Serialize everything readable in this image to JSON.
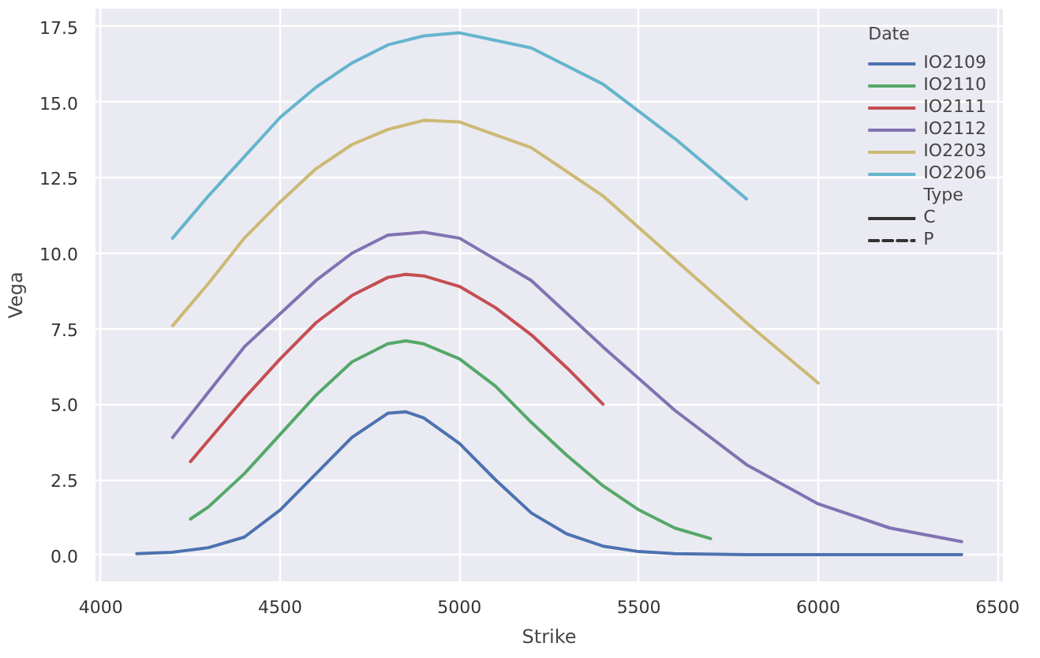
{
  "chart_data": {
    "type": "line",
    "xlabel": "Strike",
    "ylabel": "Vega",
    "legend_title": "Date",
    "legend": "top right",
    "grid": true,
    "line_style": "solid",
    "marker": "none",
    "xlim": [
      3985,
      6515
    ],
    "xticks": [
      4000,
      4500,
      5000,
      5500,
      6000,
      6500
    ],
    "ylim": [
      -0.87,
      18.1
    ],
    "yticks": [
      {
        "value": 0,
        "label": "0.0"
      },
      {
        "value": 2.5,
        "label": "2.5"
      },
      {
        "value": 5,
        "label": "5.0"
      },
      {
        "value": 7.5,
        "label": "7.5"
      },
      {
        "value": 10,
        "label": "10.0"
      },
      {
        "value": 12.5,
        "label": "12.5"
      },
      {
        "value": 15,
        "label": "15.0"
      },
      {
        "value": 17.5,
        "label": "17.5"
      }
    ],
    "series": [
      {
        "name": "IO2109",
        "color": "#4c72b0",
        "x": [
          4100,
          4200,
          4300,
          4400,
          4500,
          4600,
          4700,
          4800,
          4850,
          4900,
          5000,
          5100,
          5200,
          5300,
          5400,
          5500,
          5600,
          5800,
          6000,
          6200,
          6400
        ],
        "values": [
          0.05,
          0.1,
          0.25,
          0.6,
          1.5,
          2.7,
          3.9,
          4.7,
          4.75,
          4.55,
          3.7,
          2.5,
          1.4,
          0.7,
          0.3,
          0.12,
          0.05,
          0.02,
          0.02,
          0.02,
          0.02
        ]
      },
      {
        "name": "IO2110",
        "color": "#55a868",
        "x": [
          4250,
          4300,
          4400,
          4500,
          4600,
          4700,
          4800,
          4850,
          4900,
          5000,
          5100,
          5200,
          5300,
          5400,
          5500,
          5600,
          5700
        ],
        "values": [
          1.2,
          1.6,
          2.7,
          4.0,
          5.3,
          6.4,
          7.0,
          7.1,
          7.0,
          6.5,
          5.6,
          4.4,
          3.3,
          2.3,
          1.5,
          0.9,
          0.55
        ]
      },
      {
        "name": "IO2111",
        "color": "#c44e52",
        "x": [
          4250,
          4300,
          4400,
          4500,
          4600,
          4700,
          4800,
          4850,
          4900,
          5000,
          5100,
          5200,
          5300,
          5400
        ],
        "values": [
          3.1,
          3.8,
          5.2,
          6.5,
          7.7,
          8.6,
          9.2,
          9.3,
          9.25,
          8.9,
          8.2,
          7.3,
          6.2,
          5.0
        ]
      },
      {
        "name": "IO2112",
        "color": "#8172b2",
        "x": [
          4200,
          4300,
          4400,
          4500,
          4600,
          4700,
          4800,
          4900,
          5000,
          5200,
          5400,
          5600,
          5800,
          6000,
          6200,
          6400
        ],
        "values": [
          3.9,
          5.4,
          6.9,
          8.0,
          9.1,
          10.0,
          10.6,
          10.7,
          10.5,
          9.1,
          6.9,
          4.8,
          3.0,
          1.7,
          0.9,
          0.45
        ]
      },
      {
        "name": "IO2203",
        "color": "#ccb974",
        "x": [
          4200,
          4300,
          4400,
          4500,
          4600,
          4700,
          4800,
          4900,
          5000,
          5200,
          5400,
          5600,
          5800,
          6000
        ],
        "values": [
          7.6,
          9.0,
          10.5,
          11.7,
          12.8,
          13.6,
          14.1,
          14.4,
          14.35,
          13.5,
          11.9,
          9.8,
          7.7,
          5.7
        ]
      },
      {
        "name": "IO2206",
        "color": "#64b5cd",
        "x": [
          4200,
          4300,
          4400,
          4500,
          4600,
          4700,
          4800,
          4900,
          5000,
          5200,
          5400,
          5600,
          5800
        ],
        "values": [
          10.5,
          11.9,
          13.2,
          14.5,
          15.5,
          16.3,
          16.9,
          17.2,
          17.3,
          16.8,
          15.6,
          13.8,
          11.8
        ]
      },
      {
        "name": "Type"
      },
      {
        "name": "C",
        "color": "#333333",
        "line_style": "solid"
      },
      {
        "name": "P",
        "color": "#333333",
        "line_style": "dashed"
      }
    ]
  }
}
